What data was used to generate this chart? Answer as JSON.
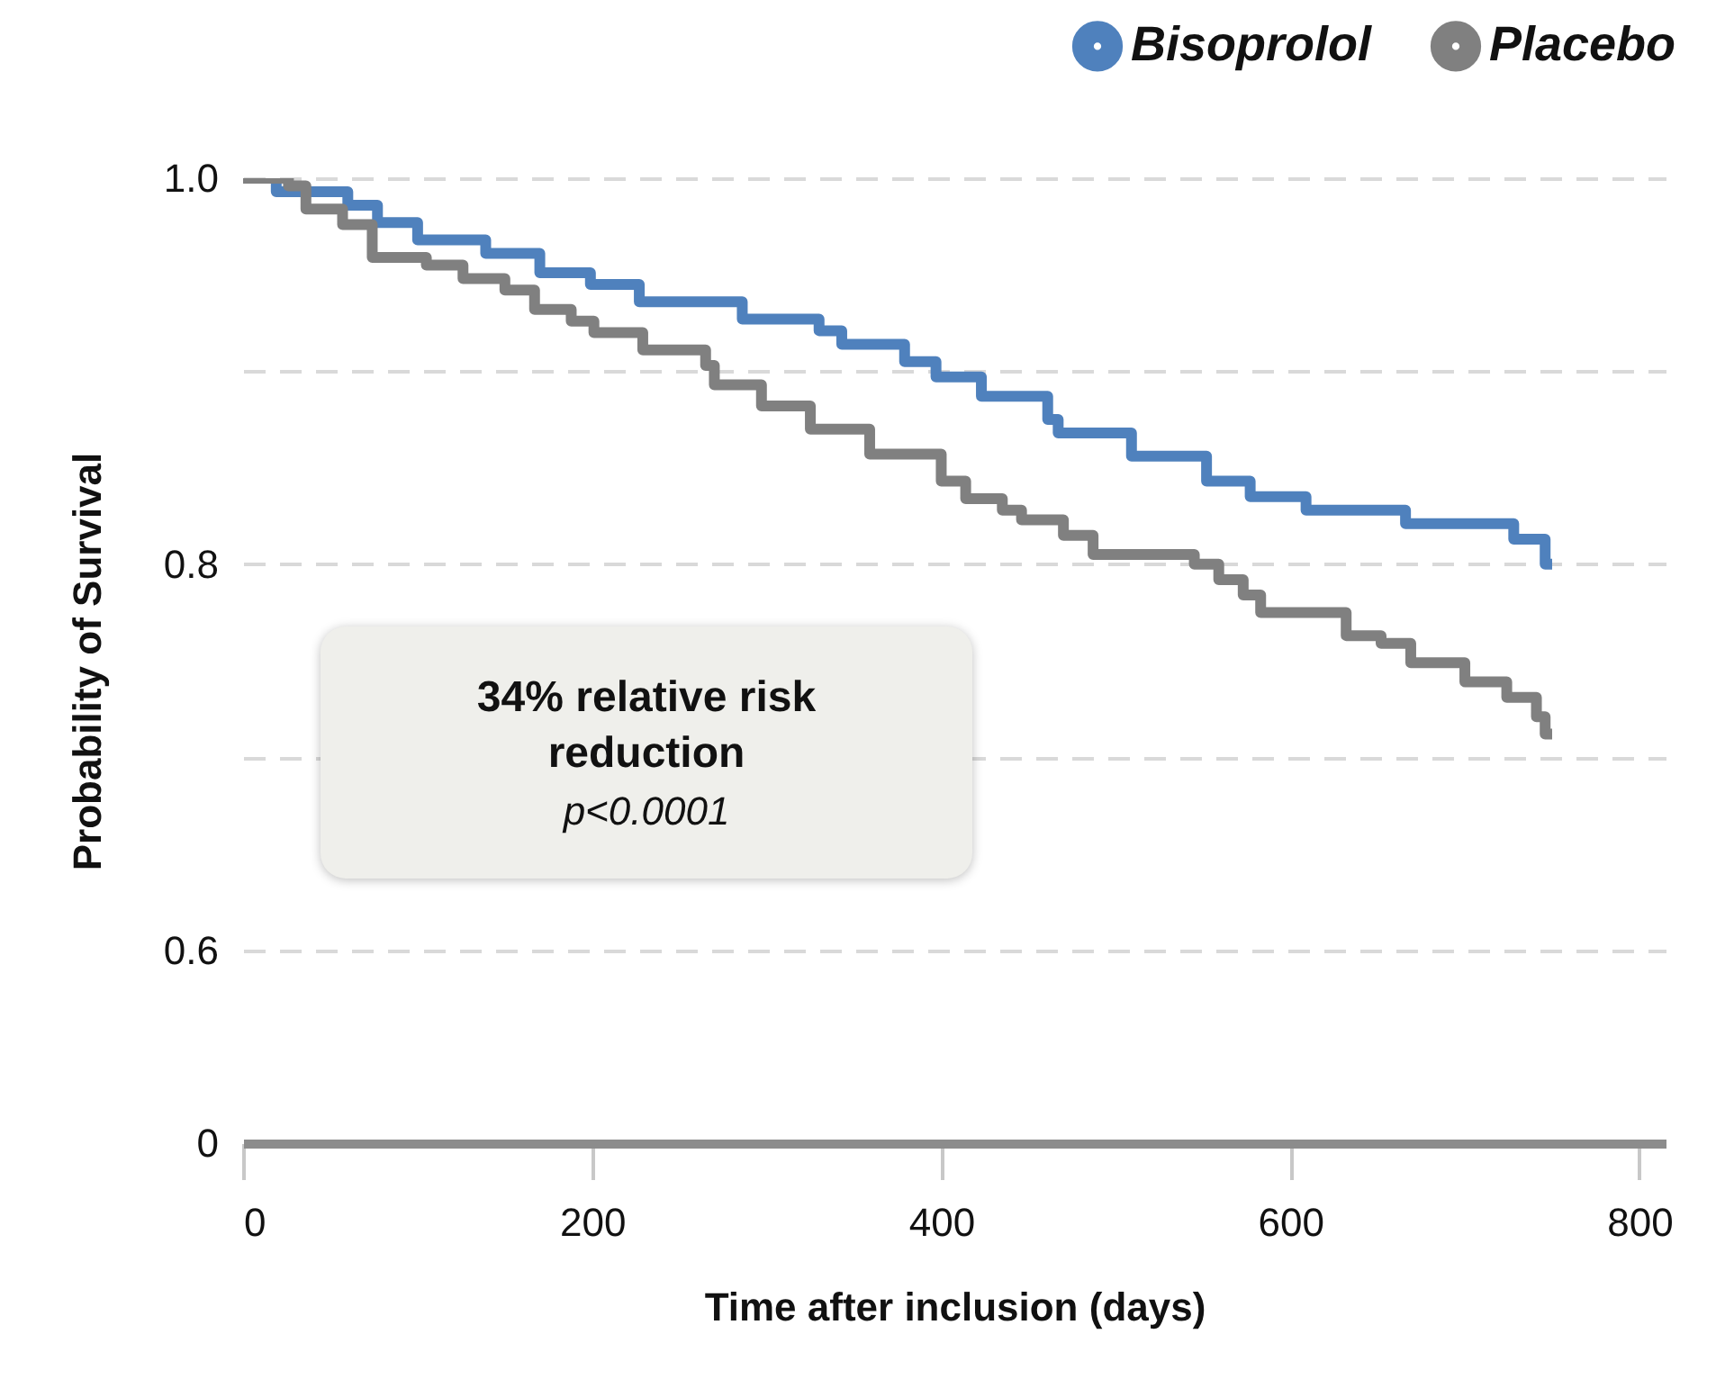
{
  "chart_data": {
    "type": "step",
    "xlabel": "Time after inclusion (days)",
    "ylabel": "Probability of Survival",
    "annotations": [
      "34% relative risk reduction",
      "p<0.0001"
    ],
    "xlim": [
      0,
      815
    ],
    "xticks": [
      0,
      200,
      400,
      600,
      800
    ],
    "ylim": [
      0.5,
      1.0
    ],
    "yticks": [
      {
        "value": 0.5,
        "label": "0"
      },
      0.6,
      {
        "value": 0.7,
        "label": null
      },
      0.8,
      {
        "value": 0.9,
        "label": null
      },
      {
        "value": 1.0,
        "label": "1.0"
      }
    ],
    "grid": "y",
    "legend": "top right",
    "series": [
      {
        "name": "Bisoprolol",
        "color": "#4f81bd",
        "x": [
          0,
          19,
          60,
          77,
          100,
          139,
          170,
          199,
          227,
          286,
          330,
          343,
          379,
          397,
          423,
          461,
          467,
          509,
          552,
          577,
          609,
          666,
          728,
          746,
          750
        ],
        "values": [
          1.0,
          0.993,
          0.986,
          0.977,
          0.968,
          0.961,
          0.951,
          0.945,
          0.936,
          0.927,
          0.921,
          0.914,
          0.905,
          0.897,
          0.887,
          0.875,
          0.868,
          0.856,
          0.843,
          0.835,
          0.828,
          0.821,
          0.813,
          0.8,
          0.8
        ]
      },
      {
        "name": "Placebo",
        "color": "#808080",
        "x": [
          0,
          26,
          36,
          57,
          74,
          105,
          126,
          150,
          167,
          188,
          201,
          229,
          265,
          270,
          297,
          325,
          359,
          400,
          414,
          435,
          446,
          470,
          487,
          545,
          559,
          573,
          583,
          632,
          652,
          669,
          700,
          724,
          741,
          746,
          750
        ],
        "values": [
          1.0,
          0.996,
          0.984,
          0.976,
          0.959,
          0.955,
          0.948,
          0.942,
          0.932,
          0.926,
          0.92,
          0.911,
          0.903,
          0.893,
          0.882,
          0.87,
          0.857,
          0.843,
          0.834,
          0.828,
          0.823,
          0.815,
          0.805,
          0.8,
          0.792,
          0.784,
          0.775,
          0.763,
          0.759,
          0.749,
          0.739,
          0.731,
          0.721,
          0.712,
          0.712
        ]
      }
    ]
  }
}
